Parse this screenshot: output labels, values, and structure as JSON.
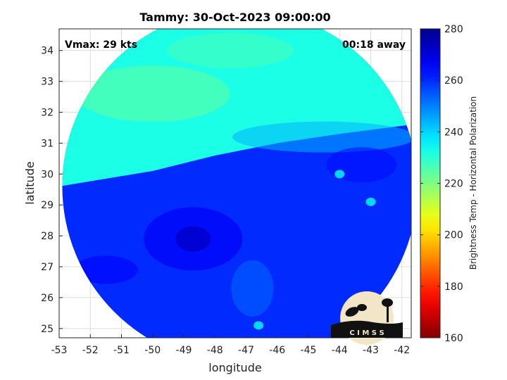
{
  "header": {
    "title": "Tammy: 30-Oct-2023 09:00:00"
  },
  "annotations": {
    "vmax": "Vmax: 29 kts",
    "time_away": "00:18 away"
  },
  "logo": {
    "text": "C I M S S"
  },
  "chart_data": {
    "type": "heatmap",
    "title": "Tammy: 30-Oct-2023 09:00:00",
    "xlabel": "longitude",
    "ylabel": "latitude",
    "xlim": [
      -53,
      -41.7
    ],
    "ylim": [
      24.7,
      34.7
    ],
    "x_ticks": [
      -53,
      -52,
      -51,
      -50,
      -49,
      -48,
      -47,
      -46,
      -45,
      -44,
      -43,
      -42
    ],
    "y_ticks": [
      25,
      26,
      27,
      28,
      29,
      30,
      31,
      32,
      33,
      34
    ],
    "x_tick_labels": [
      "-53",
      "-52",
      "-51",
      "-50",
      "-49",
      "-48",
      "-47",
      "-46",
      "-45",
      "-44",
      "-43",
      "-42"
    ],
    "y_tick_labels": [
      "25",
      "26",
      "27",
      "28",
      "29",
      "30",
      "31",
      "32",
      "33",
      "34"
    ],
    "grid": true,
    "colorbar": {
      "label": "Brightness Temp - Horizontal Polarization",
      "range": [
        160,
        280
      ],
      "ticks": [
        160,
        180,
        200,
        220,
        240,
        260,
        280
      ],
      "tick_labels": [
        "160",
        "180",
        "200",
        "220",
        "240",
        "260",
        "280"
      ],
      "colormap": "jet",
      "reversed": true
    },
    "field": {
      "north_of_front_value": 232,
      "south_of_front_value": 260,
      "front": [
        [
          -53,
          29.6
        ],
        [
          -50,
          30.1
        ],
        [
          -48,
          30.6
        ],
        [
          -46,
          31.0
        ],
        [
          -44,
          31.3
        ],
        [
          -41.7,
          31.6
        ]
      ],
      "cold_center": [
        -48.7,
        27.9
      ],
      "warm_spots": [
        [
          -44.0,
          30.0
        ],
        [
          -43.0,
          29.1
        ],
        [
          -46.6,
          25.1
        ]
      ],
      "swath_center": [
        -47.2,
        29.6
      ],
      "swath_radius_deg": 5.7
    }
  }
}
